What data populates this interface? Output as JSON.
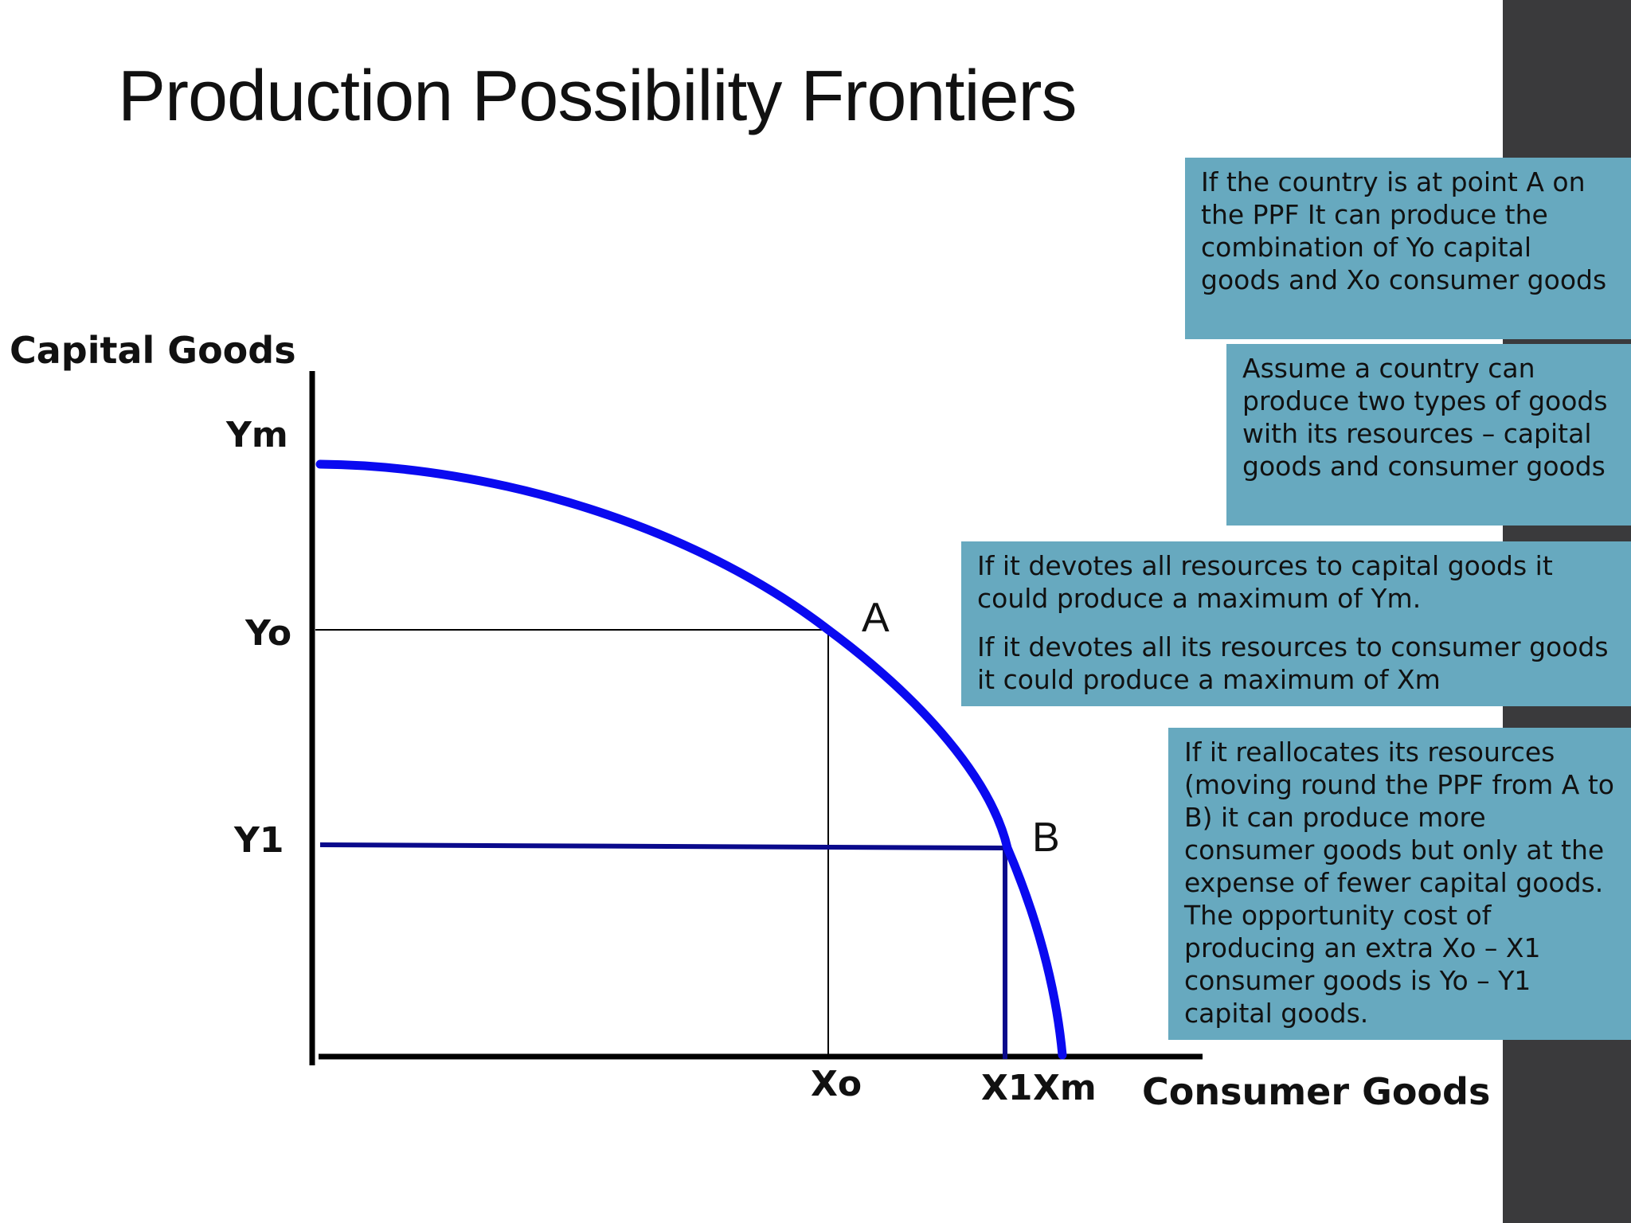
{
  "slide": {
    "title": "Production Possibility Frontiers"
  },
  "colors": {
    "frontier": "#0a0af0",
    "guide_b": "#0a0a8c",
    "guide_a": "#000000",
    "note_background": "#67a9bf",
    "side_bar": "#3a3a3c"
  },
  "diagram": {
    "y_axis_title": "Capital Goods",
    "x_axis_title": "Consumer Goods",
    "y_ticks": {
      "ym": "Ym",
      "yo": "Yo",
      "y1": "Y1"
    },
    "x_ticks": {
      "xo": "Xo",
      "x1": "X1",
      "xm": "Xm"
    },
    "points": {
      "a": "A",
      "b": "B"
    }
  },
  "notes": {
    "point_a": "If the country is at point A on the PPF It can produce the combination of Yo capital goods and Xo consumer goods",
    "assume": "Assume a country can produce two types of goods with its resources – capital goods and consumer goods",
    "max_capital": "If it devotes all resources to capital goods it could produce a maximum of Ym.",
    "max_consumer": "If it devotes all its resources to consumer goods it could produce a maximum of Xm",
    "reallocate": "If it reallocates its resources (moving round the PPF from A to B) it can produce more consumer goods but only at the expense of fewer capital goods. The opportunity cost of producing an extra Xo – X1 consumer goods is Yo – Y1 capital goods."
  }
}
